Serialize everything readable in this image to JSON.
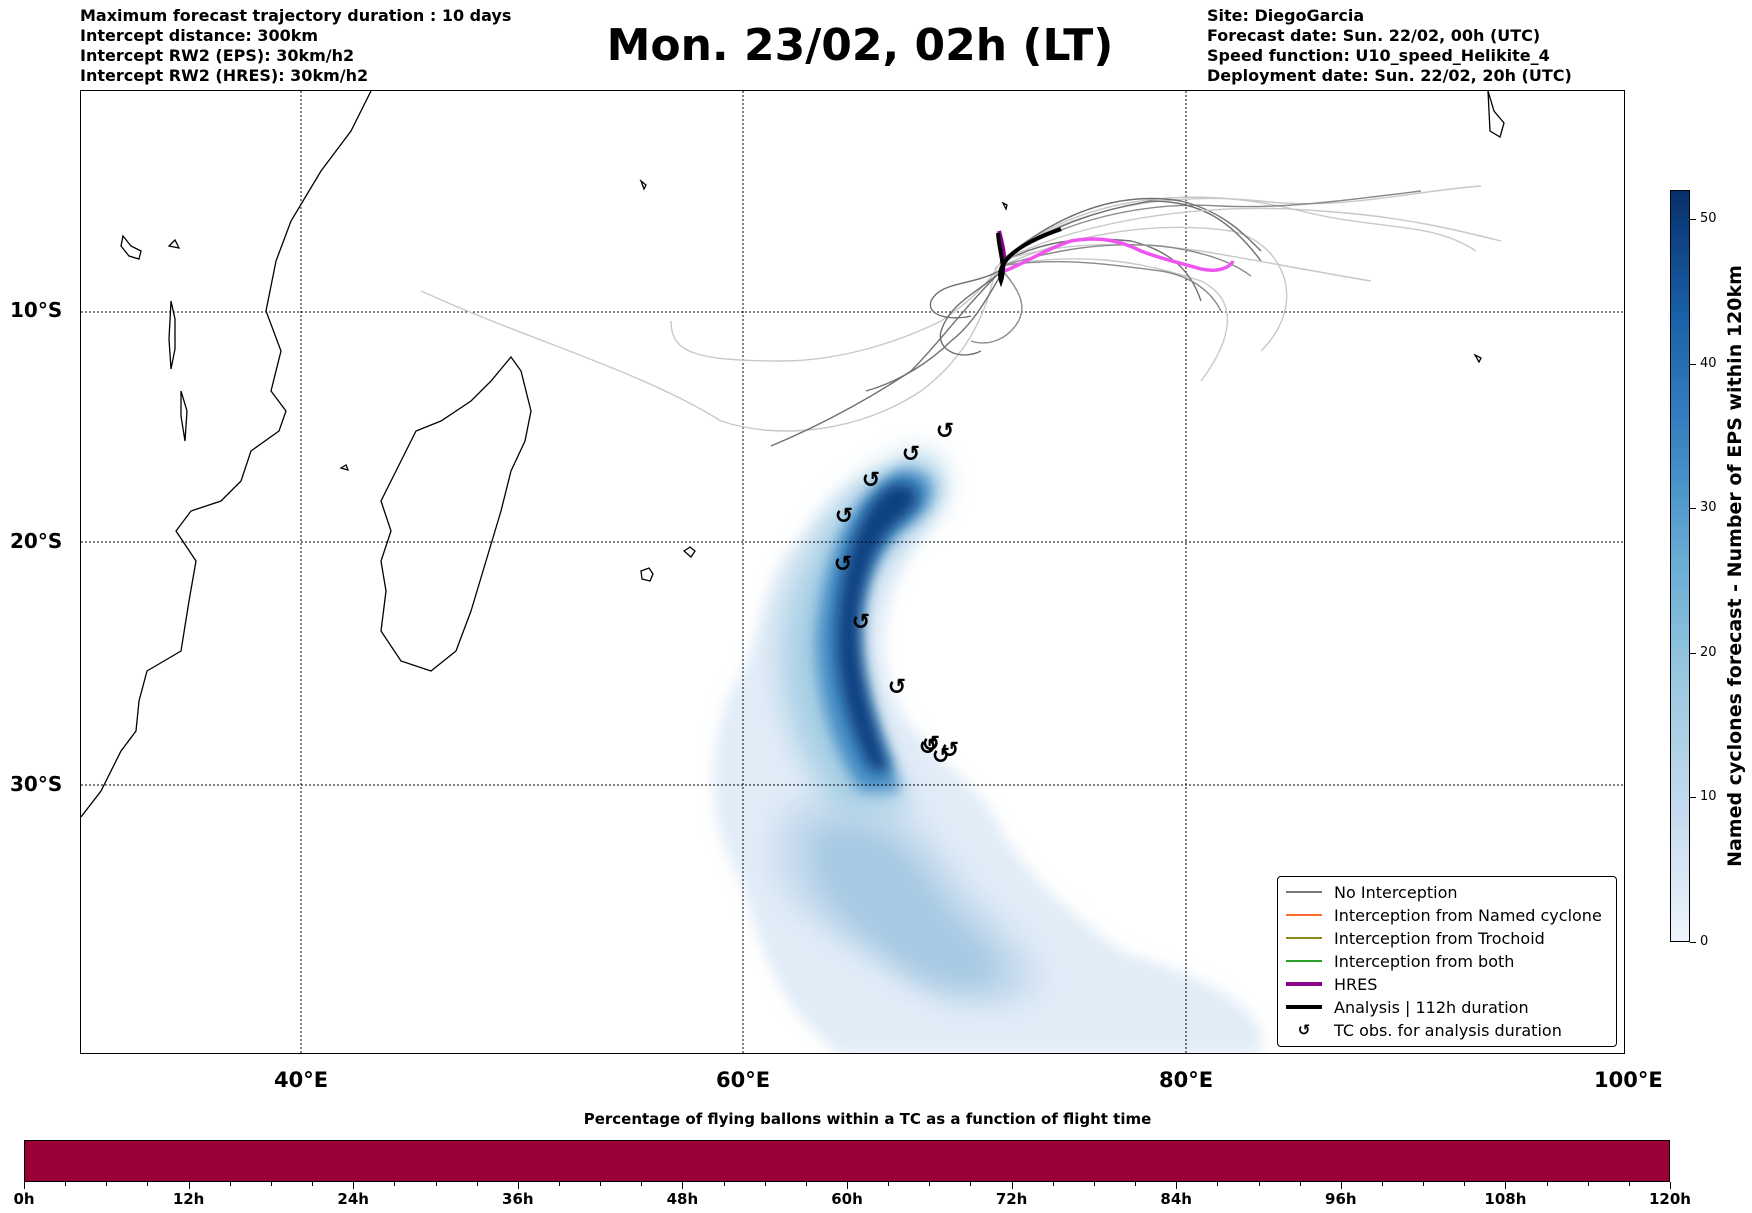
{
  "header": {
    "left_lines": [
      "Maximum forecast trajectory duration : 10 days",
      "Intercept distance: 300km",
      "Intercept RW2 (EPS):  30km/h2",
      "Intercept RW2 (HRES): 30km/h2"
    ],
    "title": "Mon. 23/02, 02h (LT)",
    "right_lines": [
      "Site: DiegoGarcia",
      "Forecast date: Sun. 22/02, 00h (UTC)",
      "Speed function: U10_speed_Helikite_4",
      "Deployment date: Sun. 22/02, 20h (UTC)"
    ]
  },
  "map": {
    "lat_labels": [
      "10°S",
      "20°S",
      "30°S"
    ],
    "lon_labels": [
      "40°E",
      "60°E",
      "80°E",
      "100°E"
    ],
    "lon_range": [
      30,
      100
    ],
    "lat_gridlines": [
      -10,
      -20,
      -30
    ],
    "lon_gridlines": [
      40,
      60,
      80
    ],
    "tc_symbol": "↺",
    "tc_obs_count": 11
  },
  "legend": {
    "items": [
      {
        "label": "No Interception",
        "color": "#777777",
        "style": "thin"
      },
      {
        "label": "Interception from Named cyclone",
        "color": "#ff6a30",
        "style": "thin"
      },
      {
        "label": "Interception from Trochoid",
        "color": "#8a8a1a",
        "style": "thin"
      },
      {
        "label": "Interception from both",
        "color": "#2aa02a",
        "style": "thin"
      },
      {
        "label": "HRES",
        "color": "#8a008a",
        "style": "thick"
      },
      {
        "label": "Analysis | 112h duration",
        "color": "#000000",
        "style": "thick"
      },
      {
        "label": "TC obs. for analysis duration",
        "color": "#000000",
        "style": "symbol",
        "symbol": "↺"
      }
    ]
  },
  "colorbar": {
    "title": "Named cyclones forecast - Number of EPS within 120km",
    "min": 0,
    "max": 52,
    "ticks": [
      0,
      10,
      20,
      30,
      40,
      50
    ],
    "colors": [
      "#eef4fb",
      "#c7dbef",
      "#9ecae1",
      "#6baed6",
      "#3a85c2",
      "#1a60a8",
      "#08306b"
    ]
  },
  "bottom_bar": {
    "title": "Percentage of flying ballons within a TC as a function of flight time",
    "color": "#9b0039",
    "major_ticks": [
      "0h",
      "12h",
      "24h",
      "36h",
      "48h",
      "60h",
      "72h",
      "84h",
      "96h",
      "108h",
      "120h"
    ],
    "minor_per_major": 4
  }
}
